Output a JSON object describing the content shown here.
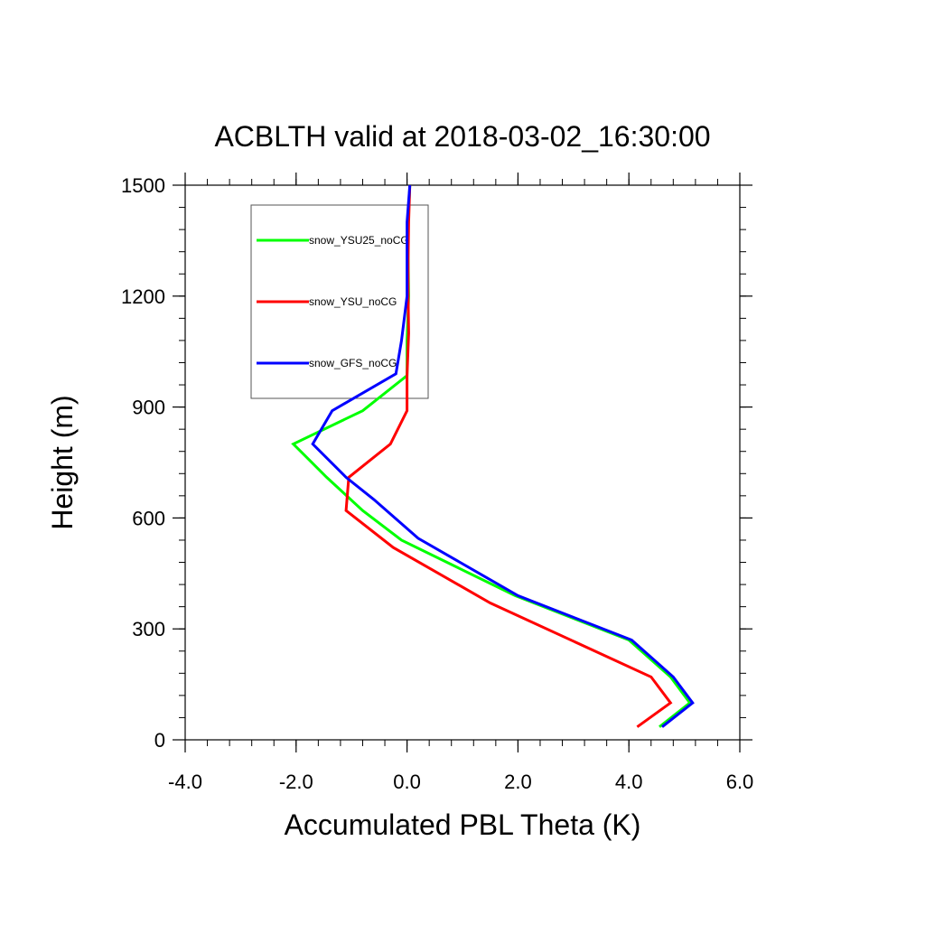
{
  "chart_data": {
    "type": "line",
    "title": "ACBLTH valid at 2018-03-02_16:30:00",
    "xlabel": "Accumulated PBL Theta (K)",
    "ylabel": "Height (m)",
    "xlim": [
      -4.0,
      6.0
    ],
    "ylim": [
      0,
      1500
    ],
    "x_ticks": [
      -4.0,
      -2.0,
      0.0,
      2.0,
      4.0,
      6.0
    ],
    "x_tick_labels": [
      "-4.0",
      "-2.0",
      "0.0",
      "2.0",
      "4.0",
      "6.0"
    ],
    "y_ticks": [
      0,
      300,
      600,
      900,
      1200,
      1500
    ],
    "y_tick_labels": [
      "0",
      "300",
      "600",
      "900",
      "1200",
      "1500"
    ],
    "grid": false,
    "legend_position": "top-left",
    "series": [
      {
        "name": "snow_YSU25_noCG",
        "color": "#00ff00",
        "points": [
          [
            4.55,
            35
          ],
          [
            5.1,
            100
          ],
          [
            4.75,
            170
          ],
          [
            4.0,
            270
          ],
          [
            1.95,
            390
          ],
          [
            -0.1,
            540
          ],
          [
            -0.8,
            620
          ],
          [
            -1.45,
            710
          ],
          [
            -2.05,
            800
          ],
          [
            -0.8,
            890
          ],
          [
            0.0,
            985
          ],
          [
            0.0,
            1080
          ],
          [
            0.03,
            1200
          ],
          [
            0.02,
            1310
          ],
          [
            0.02,
            1400
          ],
          [
            0.05,
            1500
          ]
        ]
      },
      {
        "name": "snow_YSU_noCG",
        "color": "#ff0000",
        "points": [
          [
            4.15,
            35
          ],
          [
            4.75,
            100
          ],
          [
            4.4,
            170
          ],
          [
            1.5,
            370
          ],
          [
            -0.25,
            520
          ],
          [
            -1.1,
            620
          ],
          [
            -1.05,
            710
          ],
          [
            -0.3,
            800
          ],
          [
            0.0,
            890
          ],
          [
            0.0,
            985
          ],
          [
            0.03,
            1100
          ],
          [
            0.02,
            1200
          ],
          [
            0.02,
            1300
          ],
          [
            0.03,
            1400
          ],
          [
            0.05,
            1500
          ]
        ]
      },
      {
        "name": "snow_GFS_noCG",
        "color": "#0000ff",
        "points": [
          [
            4.6,
            35
          ],
          [
            5.15,
            100
          ],
          [
            4.8,
            170
          ],
          [
            4.05,
            270
          ],
          [
            2.0,
            390
          ],
          [
            0.2,
            545
          ],
          [
            -0.6,
            650
          ],
          [
            -1.1,
            710
          ],
          [
            -1.7,
            800
          ],
          [
            -1.35,
            890
          ],
          [
            -0.2,
            990
          ],
          [
            -0.1,
            1080
          ],
          [
            0.0,
            1200
          ],
          [
            0.0,
            1300
          ],
          [
            0.0,
            1400
          ],
          [
            0.05,
            1500
          ]
        ]
      }
    ]
  }
}
